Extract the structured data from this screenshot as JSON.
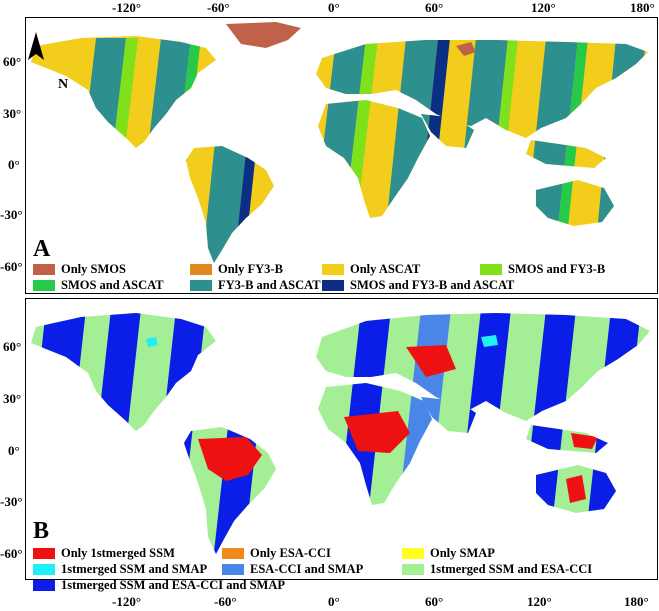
{
  "top_axis": {
    "labels": [
      "-120°",
      "-60°",
      "0°",
      "60°",
      "120°",
      "180°"
    ]
  },
  "bottom_axis": {
    "labels": [
      "-120°",
      "-60°",
      "0°",
      "60°",
      "120°",
      "180°"
    ]
  },
  "panel_a": {
    "letter": "A",
    "north_label": "N",
    "lat_labels": [
      "60°",
      "30°",
      "0°",
      "-30°",
      "-60°"
    ],
    "legend": [
      {
        "label": "Only SMOS",
        "color": "#c0624a"
      },
      {
        "label": "Only FY3-B",
        "color": "#e08a1e"
      },
      {
        "label": "Only ASCAT",
        "color": "#f2cd1c"
      },
      {
        "label": "SMOS and FY3-B",
        "color": "#7fe01c"
      },
      {
        "label": "SMOS and ASCAT",
        "color": "#26c94a"
      },
      {
        "label": "FY3-B and ASCAT",
        "color": "#2e8f8f"
      },
      {
        "label": "SMOS and  FY3-B and ASCAT",
        "color": "#0c2f86"
      }
    ]
  },
  "panel_b": {
    "letter": "B",
    "lat_labels": [
      "60°",
      "30°",
      "0°",
      "-30°",
      "-60°"
    ],
    "legend": [
      {
        "label": "Only 1stmerged SSM",
        "color": "#ee1111"
      },
      {
        "label": "Only ESA-CCI",
        "color": "#f08a1a"
      },
      {
        "label": "Only SMAP",
        "color": "#ffff22"
      },
      {
        "label": "1stmerged SSM and SMAP",
        "color": "#22eef5"
      },
      {
        "label": "ESA-CCI and SMAP",
        "color": "#4a86e8"
      },
      {
        "label": "1stmerged SSM and ESA-CCI",
        "color": "#a4ef95"
      },
      {
        "label": "1stmerged SSM and ESA-CCI and SMAP",
        "color": "#0a1ee8"
      }
    ]
  }
}
